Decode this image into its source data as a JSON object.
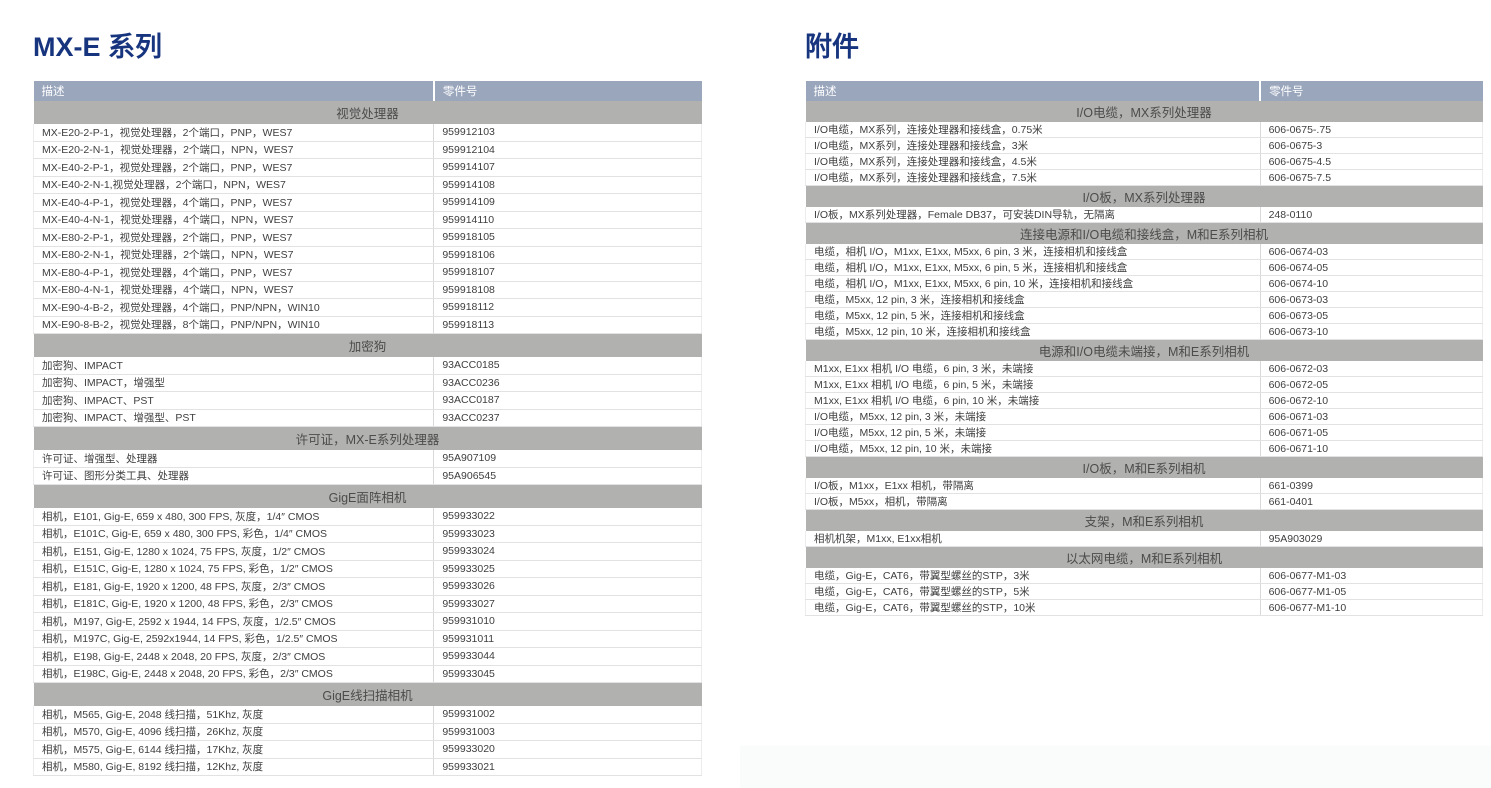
{
  "colors": {
    "title": "#17357e",
    "table_header_bg": "#9aa6bc",
    "table_header_text": "#ffffff",
    "section_header_bg": "#b1b1af",
    "section_header_text": "#4c4c4c",
    "row_text": "#3e3e3e"
  },
  "left_panel": {
    "title": "MX-E 系列",
    "columns": [
      "描述",
      "零件号"
    ],
    "sections": [
      {
        "header": "视觉处理器",
        "rows": [
          [
            "MX-E20-2-P-1，视觉处理器，2个端口，PNP，WES7",
            "959912103"
          ],
          [
            "MX-E20-2-N-1，视觉处理器，2个端口，NPN，WES7",
            "959912104"
          ],
          [
            "MX-E40-2-P-1，视觉处理器，2个端口，PNP，WES7",
            "959914107"
          ],
          [
            "MX-E40-2-N-1,视觉处理器，2个端口，NPN，WES7",
            "959914108"
          ],
          [
            "MX-E40-4-P-1，视觉处理器，4个端口，PNP，WES7",
            "959914109"
          ],
          [
            "MX-E40-4-N-1，视觉处理器，4个端口，NPN，WES7",
            "959914110"
          ],
          [
            "MX-E80-2-P-1，视觉处理器，2个端口，PNP，WES7",
            "959918105"
          ],
          [
            "MX-E80-2-N-1，视觉处理器，2个端口，NPN，WES7",
            "959918106"
          ],
          [
            "MX-E80-4-P-1，视觉处理器，4个端口，PNP，WES7",
            "959918107"
          ],
          [
            "MX-E80-4-N-1，视觉处理器，4个端口，NPN，WES7",
            "959918108"
          ],
          [
            "MX-E90-4-B-2，视觉处理器，4个端口，PNP/NPN，WIN10",
            "959918112"
          ],
          [
            "MX-E90-8-B-2，视觉处理器，8个端口，PNP/NPN，WIN10",
            "959918113"
          ]
        ]
      },
      {
        "header": "加密狗",
        "rows": [
          [
            "加密狗、IMPACT",
            "93ACC0185"
          ],
          [
            "加密狗、IMPACT，增强型",
            "93ACC0236"
          ],
          [
            "加密狗、IMPACT、PST",
            "93ACC0187"
          ],
          [
            "加密狗、IMPACT、增强型、PST",
            "93ACC0237"
          ]
        ]
      },
      {
        "header": "许可证，MX-E系列处理器",
        "rows": [
          [
            "许可证、增强型、处理器",
            "95A907109"
          ],
          [
            "许可证、图形分类工具、处理器",
            "95A906545"
          ]
        ]
      },
      {
        "header": "GigE面阵相机",
        "rows": [
          [
            "相机，E101, Gig-E, 659 x 480, 300 FPS, 灰度，1/4″ CMOS",
            "959933022"
          ],
          [
            "相机，E101C, Gig-E, 659 x 480, 300 FPS, 彩色，1/4″ CMOS",
            "959933023"
          ],
          [
            "相机，E151, Gig-E, 1280 x 1024, 75 FPS, 灰度，1/2″ CMOS",
            "959933024"
          ],
          [
            "相机，E151C, Gig-E, 1280 x 1024, 75 FPS, 彩色，1/2″ CMOS",
            "959933025"
          ],
          [
            "相机，E181, Gig-E, 1920 x 1200, 48 FPS, 灰度，2/3″ CMOS",
            "959933026"
          ],
          [
            "相机，E181C, Gig-E, 1920 x 1200, 48 FPS, 彩色，2/3″ CMOS",
            "959933027"
          ],
          [
            "相机，M197, Gig-E, 2592 x 1944, 14 FPS, 灰度，1/2.5″ CMOS",
            "959931010"
          ],
          [
            "相机，M197C, Gig-E, 2592x1944, 14 FPS, 彩色，1/2.5″ CMOS",
            "959931011"
          ],
          [
            "相机，E198, Gig-E, 2448 x 2048, 20 FPS, 灰度，2/3″ CMOS",
            "959933044"
          ],
          [
            "相机，E198C, Gig-E, 2448 x 2048, 20 FPS, 彩色，2/3″ CMOS",
            "959933045"
          ]
        ]
      },
      {
        "header": "GigE线扫描相机",
        "rows": [
          [
            "相机，M565, Gig-E, 2048 线扫描，51Khz, 灰度",
            "959931002"
          ],
          [
            "相机，M570, Gig-E, 4096 线扫描，26Khz, 灰度",
            "959931003"
          ],
          [
            "相机，M575, Gig-E, 6144 线扫描，17Khz, 灰度",
            "959933020"
          ],
          [
            "相机，M580, Gig-E, 8192 线扫描，12Khz, 灰度",
            "959933021"
          ]
        ]
      }
    ]
  },
  "right_panel": {
    "title": "附件",
    "columns": [
      "描述",
      "零件号"
    ],
    "sections": [
      {
        "header": "I/O电缆，MX系列处理器",
        "rows": [
          [
            "I/O电缆，MX系列，连接处理器和接线盒，0.75米",
            "606-0675-.75"
          ],
          [
            "I/O电缆，MX系列，连接处理器和接线盒，3米",
            "606-0675-3"
          ],
          [
            "I/O电缆，MX系列，连接处理器和接线盒，4.5米",
            "606-0675-4.5"
          ],
          [
            "I/O电缆，MX系列，连接处理器和接线盒，7.5米",
            "606-0675-7.5"
          ]
        ]
      },
      {
        "header": "I/O板，MX系列处理器",
        "rows": [
          [
            "I/O板，MX系列处理器，Female DB37，可安装DIN导轨，无隔离",
            "248-0110"
          ]
        ]
      },
      {
        "header": "连接电源和I/O电缆和接线盒，M和E系列相机",
        "rows": [
          [
            "电缆，相机 I/O，M1xx, E1xx, M5xx, 6 pin, 3 米，连接相机和接线盒",
            "606-0674-03"
          ],
          [
            "电缆，相机 I/O，M1xx, E1xx, M5xx, 6 pin, 5 米，连接相机和接线盒",
            "606-0674-05"
          ],
          [
            "电缆，相机 I/O，M1xx, E1xx, M5xx, 6 pin, 10 米，连接相机和接线盒",
            "606-0674-10"
          ],
          [
            "电缆，M5xx, 12 pin, 3 米，连接相机和接线盒",
            "606-0673-03"
          ],
          [
            "电缆，M5xx, 12 pin, 5 米，连接相机和接线盒",
            "606-0673-05"
          ],
          [
            "电缆，M5xx, 12 pin, 10 米，连接相机和接线盒",
            "606-0673-10"
          ]
        ]
      },
      {
        "header": "电源和I/O电缆未端接，M和E系列相机",
        "rows": [
          [
            "M1xx, E1xx 相机 I/O 电缆，6 pin, 3 米，未端接",
            "606-0672-03"
          ],
          [
            "M1xx, E1xx 相机 I/O 电缆，6 pin, 5 米，未端接",
            "606-0672-05"
          ],
          [
            "M1xx, E1xx 相机 I/O 电缆，6 pin, 10 米，未端接",
            "606-0672-10"
          ],
          [
            "I/O电缆，M5xx, 12 pin, 3 米，未端接",
            "606-0671-03"
          ],
          [
            "I/O电缆，M5xx, 12 pin, 5 米，未端接",
            "606-0671-05"
          ],
          [
            "I/O电缆，M5xx, 12 pin, 10 米，未端接",
            "606-0671-10"
          ]
        ]
      },
      {
        "header": "I/O板，M和E系列相机",
        "rows": [
          [
            "I/O板，M1xx，E1xx 相机，带隔离",
            "661-0399"
          ],
          [
            "I/O板，M5xx，相机，带隔离",
            "661-0401"
          ]
        ]
      },
      {
        "header": "支架，M和E系列相机",
        "rows": [
          [
            "相机机架，M1xx, E1xx相机",
            "95A903029"
          ]
        ]
      },
      {
        "header": "以太网电缆，M和E系列相机",
        "rows": [
          [
            "电缆，Gig-E，CAT6，带翼型螺丝的STP，3米",
            "606-0677-M1-03"
          ],
          [
            "电缆，Gig-E，CAT6，带翼型螺丝的STP，5米",
            "606-0677-M1-05"
          ],
          [
            "电缆，Gig-E，CAT6，带翼型螺丝的STP，10米",
            "606-0677-M1-10"
          ]
        ]
      }
    ]
  }
}
